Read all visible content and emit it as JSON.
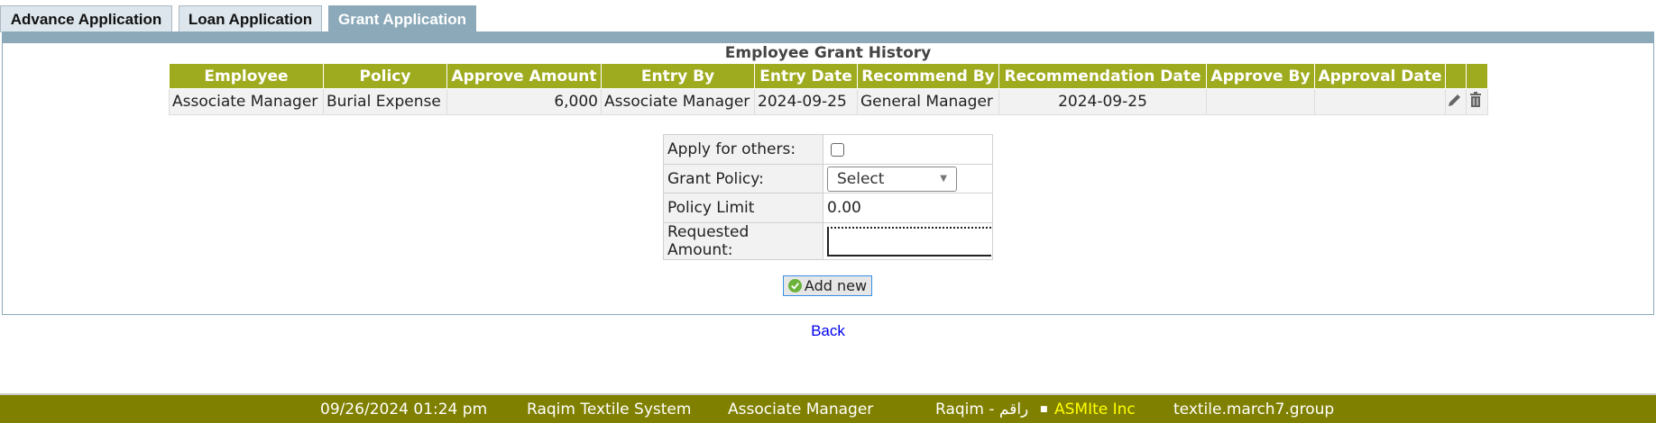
{
  "tabs": [
    {
      "label": "Advance Application"
    },
    {
      "label": "Loan Application"
    },
    {
      "label": "Grant Application",
      "active": true
    }
  ],
  "history": {
    "title": "Employee Grant History",
    "columns": [
      "Employee",
      "Policy",
      "Approve Amount",
      "Entry By",
      "Entry Date",
      "Recommend By",
      "Recommendation Date",
      "Approve By",
      "Approval Date",
      "",
      ""
    ],
    "rows": [
      {
        "employee": "Associate Manager",
        "policy": "Burial Expense",
        "approve_amount": "6,000",
        "entry_by": "Associate Manager",
        "entry_date": "2024-09-25",
        "recommend_by": "General Manager",
        "recommendation_date": "2024-09-25",
        "approve_by": "",
        "approval_date": ""
      }
    ]
  },
  "form": {
    "apply_others_label": "Apply for others:",
    "apply_others_checked": false,
    "grant_policy_label": "Grant Policy:",
    "grant_policy_value": "Select",
    "policy_limit_label": "Policy Limit",
    "policy_limit_value": "0.00",
    "requested_amount_label": "Requested Amount:",
    "requested_amount_value": ""
  },
  "add_button": "Add new",
  "back_link": "Back",
  "footer": {
    "datetime": "09/26/2024 01:24 pm",
    "system": "Raqim Textile System",
    "user": "Associate Manager",
    "brand": "Raqim - راقم",
    "company": "ASMIte Inc",
    "domain": "textile.march7.group"
  },
  "colors": {
    "header": "#9fab1f",
    "footer": "#808000",
    "tab_active": "#8ba9b9",
    "company": "#ffff00"
  }
}
